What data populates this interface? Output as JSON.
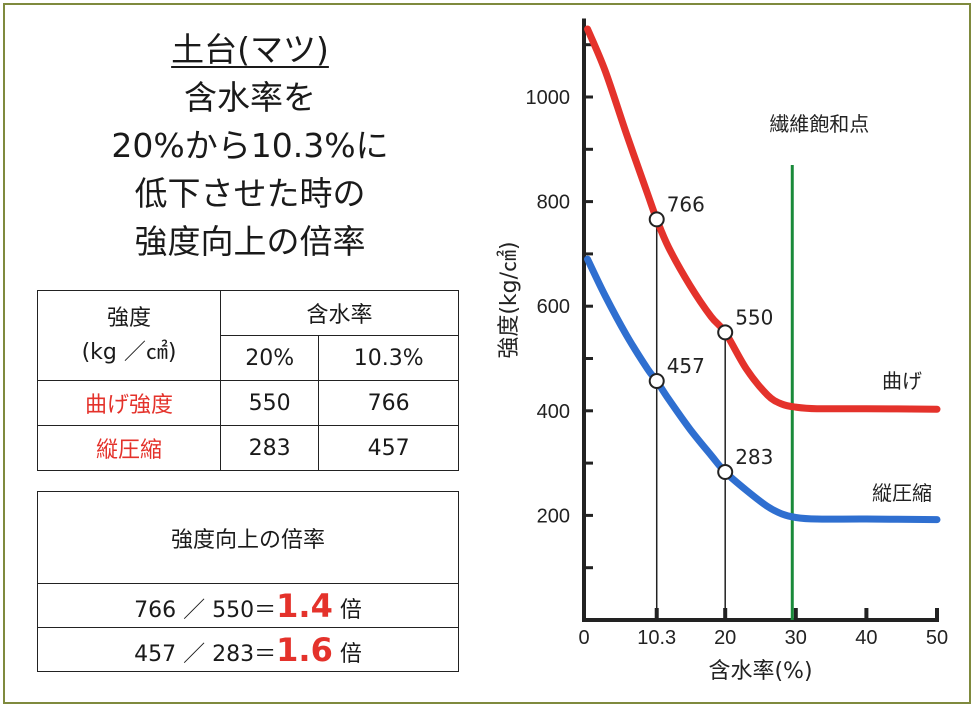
{
  "title": {
    "line1": "土台(マツ)",
    "line2": "含水率を",
    "line3": "20%から10.3%に",
    "line4": "低下させた時の",
    "line5": "強度向上の倍率"
  },
  "table1": {
    "head_strength": "強度",
    "head_unit": "(kg ／㎠)",
    "head_moisture": "含水率",
    "col_20": "20%",
    "col_103": "10.3%",
    "rows": [
      {
        "label": "曲げ強度",
        "v20": "550",
        "v103": "766"
      },
      {
        "label": "縦圧縮",
        "v20": "283",
        "v103": "457"
      }
    ]
  },
  "table2": {
    "header": "強度向上の倍率",
    "rows": [
      {
        "expr": "766 ／ 550＝",
        "ratio": "1.4",
        "unit": "倍"
      },
      {
        "expr": "457 ／ 283＝",
        "ratio": "1.6",
        "unit": "倍"
      }
    ]
  },
  "chart_data": {
    "type": "line",
    "xlabel": "含水率(%)",
    "ylabel": "強度(kg/㎠)",
    "xlim": [
      0,
      50
    ],
    "ylim": [
      0,
      1150
    ],
    "x_ticks": [
      "0",
      "10.3",
      "20",
      "30",
      "40",
      "50"
    ],
    "y_ticks": [
      "200",
      "400",
      "600",
      "800",
      "1000"
    ],
    "vline": {
      "x": 29.5,
      "label": "繊維飽和点",
      "color": "#1a8a3a"
    },
    "series": [
      {
        "name": "曲げ",
        "color": "#e4322b",
        "x": [
          0.5,
          3,
          6,
          9,
          10.3,
          12,
          15,
          18,
          20,
          23,
          26,
          28,
          30,
          33,
          40,
          50
        ],
        "y": [
          1130,
          1050,
          930,
          815,
          766,
          712,
          640,
          580,
          550,
          480,
          430,
          413,
          407,
          404,
          404,
          403
        ]
      },
      {
        "name": "縦圧縮",
        "color": "#2f6fd0",
        "x": [
          0.5,
          3,
          6,
          9,
          10.3,
          12,
          15,
          18,
          20,
          23,
          26,
          28,
          30,
          33,
          40,
          50
        ],
        "y": [
          690,
          620,
          545,
          480,
          457,
          422,
          365,
          315,
          283,
          248,
          217,
          203,
          196,
          193,
          193,
          192
        ]
      }
    ],
    "markers": [
      {
        "x": 10.3,
        "y": 766,
        "label": "766"
      },
      {
        "x": 20,
        "y": 550,
        "label": "550"
      },
      {
        "x": 10.3,
        "y": 457,
        "label": "457"
      },
      {
        "x": 20,
        "y": 283,
        "label": "283"
      }
    ]
  }
}
